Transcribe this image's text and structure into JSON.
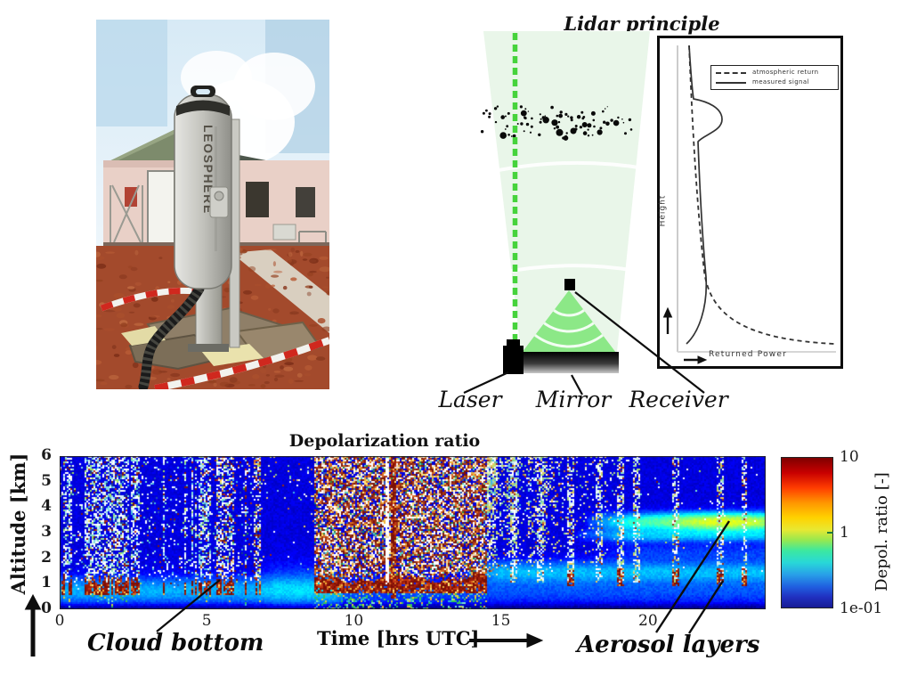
{
  "photo": {
    "description": "LEOSPHERE lidar instrument installed outdoors in red dirt in front of a building",
    "device_label": "LEOSPHERE"
  },
  "diagram": {
    "title": "Lidar principle",
    "laser_label": "Laser",
    "mirror_label": "Mirror",
    "receiver_label": "Receiver",
    "inset": {
      "ylabel": "Height",
      "xlabel": "Returned Power",
      "legend": [
        {
          "style": "dashed",
          "label": "atmospheric return"
        },
        {
          "style": "solid",
          "label": "measured signal"
        }
      ]
    }
  },
  "chart": {
    "title": "Depolarization ratio",
    "ylabel": "Altitude [km]",
    "xlabel": "Time [hrs UTC]",
    "colorbar_label": "Depol. ratio [-]",
    "annotations": {
      "cloud_bottom": "Cloud bottom",
      "aerosol_layers": "Aerosol layers"
    }
  },
  "chart_data": {
    "type": "heatmap",
    "title": "Depolarization ratio",
    "xlabel": "Time [hrs UTC]",
    "ylabel": "Altitude [km]",
    "x_range_hrs": [
      0,
      24
    ],
    "x_ticks": [
      0,
      5,
      10,
      15,
      20
    ],
    "y_range_km": [
      0,
      6
    ],
    "y_ticks": [
      0,
      1,
      2,
      3,
      4,
      5,
      6
    ],
    "colorbar": {
      "label": "Depol. ratio [-]",
      "scale": "log",
      "range": [
        0.1,
        10
      ],
      "ticks": [
        "1e-01",
        "1",
        "10"
      ],
      "colormap": "jet"
    },
    "background_depol_ratio": 0.16,
    "features": [
      {
        "name": "cloud bottom (high depol ~5-10, dark red)",
        "altitude_km": 1.0,
        "time_hrs": [
          0.2,
          6.9
        ]
      },
      {
        "name": "cloud bottom (high depol ~5-10, dark red, continuous)",
        "altitude_km": 1.0,
        "time_hrs": [
          8.7,
          14.5
        ]
      },
      {
        "name": "noisy speckle stripes (white/cyan)",
        "altitude_km": [
          1,
          6
        ],
        "time_hrs": [
          0.2,
          6.9
        ]
      },
      {
        "name": "dense warm speckle (cloud/rain)",
        "altitude_km": [
          1.2,
          6
        ],
        "time_hrs": [
          8.7,
          14.5
        ]
      },
      {
        "name": "decaying light speckle",
        "altitude_km": [
          2,
          6
        ],
        "time_hrs": [
          14.5,
          19.2
        ]
      },
      {
        "name": "aerosol layer (green-yellow band, depol ~1)",
        "altitude_km": 3.4,
        "time_hrs": [
          18,
          24
        ]
      },
      {
        "name": "aerosol layer (cyan band, depol ~0.5)",
        "altitude_km": 2.9,
        "time_hrs": [
          18,
          24
        ]
      },
      {
        "name": "aerosol layer (cyan band, depol ~0.4)",
        "altitude_km": 1.5,
        "time_hrs": [
          14,
          24
        ]
      },
      {
        "name": "near-surface cyan layer",
        "altitude_km": 0.7,
        "time_hrs": [
          0,
          9.5
        ]
      },
      {
        "name": "intermittent narrow noise columns with red spots near 1-1.6 km",
        "altitude_km": [
          1,
          6
        ],
        "time_hrs": [
          15.4,
          23.3
        ]
      }
    ]
  }
}
